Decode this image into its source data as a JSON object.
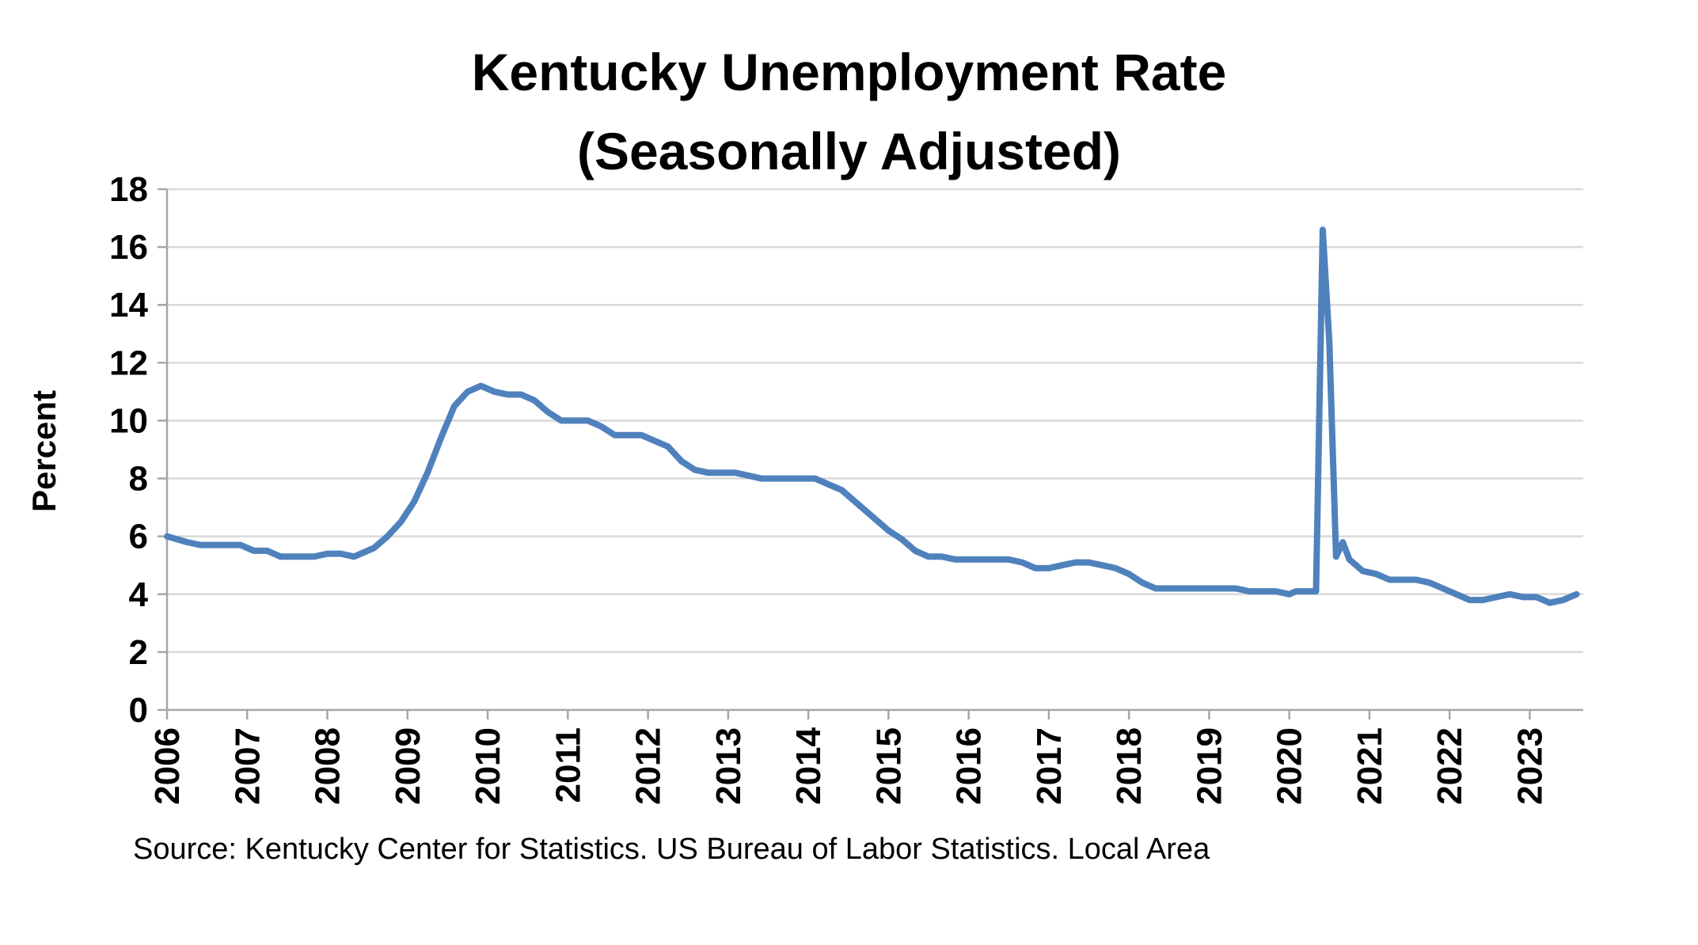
{
  "chart_data": {
    "type": "line",
    "title_lines": [
      "Kentucky Unemployment Rate",
      "(Seasonally Adjusted)"
    ],
    "xlabel": "",
    "ylabel": "Percent",
    "ylim": [
      0,
      18
    ],
    "yticks": [
      "0",
      "2",
      "4",
      "6",
      "8",
      "10",
      "12",
      "14",
      "16",
      "18"
    ],
    "xlim": [
      "2006-01",
      "2023-09"
    ],
    "xticks": [
      "2006",
      "2007",
      "2008",
      "2009",
      "2010",
      "2011",
      "2012",
      "2013",
      "2014",
      "2015",
      "2016",
      "2017",
      "2018",
      "2019",
      "2020",
      "2021",
      "2022",
      "2023"
    ],
    "grid": true,
    "legend": "none",
    "line_color": "#4F81BD",
    "gridline_color": "#D9D9D9",
    "axis_color": "#A6A6A6",
    "source": "Source: Kentucky Center for Statistics. US Bureau of Labor Statistics. Local Area",
    "series": [
      {
        "points": [
          [
            "2006-01",
            6.0
          ],
          [
            "2006-04",
            5.8
          ],
          [
            "2006-06",
            5.7
          ],
          [
            "2006-09",
            5.7
          ],
          [
            "2006-12",
            5.7
          ],
          [
            "2007-02",
            5.5
          ],
          [
            "2007-04",
            5.5
          ],
          [
            "2007-06",
            5.3
          ],
          [
            "2007-09",
            5.3
          ],
          [
            "2007-11",
            5.3
          ],
          [
            "2008-01",
            5.4
          ],
          [
            "2008-03",
            5.4
          ],
          [
            "2008-05",
            5.3
          ],
          [
            "2008-07",
            5.5
          ],
          [
            "2008-08",
            5.6
          ],
          [
            "2008-10",
            6.0
          ],
          [
            "2008-12",
            6.5
          ],
          [
            "2009-02",
            7.2
          ],
          [
            "2009-04",
            8.2
          ],
          [
            "2009-06",
            9.4
          ],
          [
            "2009-08",
            10.5
          ],
          [
            "2009-10",
            11.0
          ],
          [
            "2009-12",
            11.2
          ],
          [
            "2010-02",
            11.0
          ],
          [
            "2010-04",
            10.9
          ],
          [
            "2010-06",
            10.9
          ],
          [
            "2010-08",
            10.7
          ],
          [
            "2010-10",
            10.3
          ],
          [
            "2010-12",
            10.0
          ],
          [
            "2011-02",
            10.0
          ],
          [
            "2011-04",
            10.0
          ],
          [
            "2011-06",
            9.8
          ],
          [
            "2011-08",
            9.5
          ],
          [
            "2011-10",
            9.5
          ],
          [
            "2011-12",
            9.5
          ],
          [
            "2012-02",
            9.3
          ],
          [
            "2012-04",
            9.1
          ],
          [
            "2012-06",
            8.6
          ],
          [
            "2012-08",
            8.3
          ],
          [
            "2012-10",
            8.2
          ],
          [
            "2012-12",
            8.2
          ],
          [
            "2013-02",
            8.2
          ],
          [
            "2013-04",
            8.1
          ],
          [
            "2013-06",
            8.0
          ],
          [
            "2013-08",
            8.0
          ],
          [
            "2013-10",
            8.0
          ],
          [
            "2013-12",
            8.0
          ],
          [
            "2014-02",
            8.0
          ],
          [
            "2014-04",
            7.8
          ],
          [
            "2014-06",
            7.6
          ],
          [
            "2014-07",
            7.4
          ],
          [
            "2014-09",
            7.0
          ],
          [
            "2014-11",
            6.6
          ],
          [
            "2015-01",
            6.2
          ],
          [
            "2015-03",
            5.9
          ],
          [
            "2015-05",
            5.5
          ],
          [
            "2015-07",
            5.3
          ],
          [
            "2015-09",
            5.3
          ],
          [
            "2015-11",
            5.2
          ],
          [
            "2016-01",
            5.2
          ],
          [
            "2016-03",
            5.2
          ],
          [
            "2016-05",
            5.2
          ],
          [
            "2016-07",
            5.2
          ],
          [
            "2016-09",
            5.1
          ],
          [
            "2016-11",
            4.9
          ],
          [
            "2017-01",
            4.9
          ],
          [
            "2017-03",
            5.0
          ],
          [
            "2017-05",
            5.1
          ],
          [
            "2017-07",
            5.1
          ],
          [
            "2017-09",
            5.0
          ],
          [
            "2017-11",
            4.9
          ],
          [
            "2018-01",
            4.7
          ],
          [
            "2018-03",
            4.4
          ],
          [
            "2018-05",
            4.2
          ],
          [
            "2018-07",
            4.2
          ],
          [
            "2018-09",
            4.2
          ],
          [
            "2018-11",
            4.2
          ],
          [
            "2019-01",
            4.2
          ],
          [
            "2019-03",
            4.2
          ],
          [
            "2019-05",
            4.2
          ],
          [
            "2019-07",
            4.1
          ],
          [
            "2019-09",
            4.1
          ],
          [
            "2019-11",
            4.1
          ],
          [
            "2020-01",
            4.0
          ],
          [
            "2020-02",
            4.1
          ],
          [
            "2020-03",
            4.1
          ],
          [
            "2020-05",
            4.1
          ],
          [
            "2020-06",
            16.6
          ],
          [
            "2020-07",
            12.7
          ],
          [
            "2020-08",
            5.3
          ],
          [
            "2020-09",
            5.8
          ],
          [
            "2020-10",
            5.2
          ],
          [
            "2020-12",
            4.8
          ],
          [
            "2021-02",
            4.7
          ],
          [
            "2021-04",
            4.5
          ],
          [
            "2021-06",
            4.5
          ],
          [
            "2021-08",
            4.5
          ],
          [
            "2021-10",
            4.4
          ],
          [
            "2021-12",
            4.2
          ],
          [
            "2022-02",
            4.0
          ],
          [
            "2022-04",
            3.8
          ],
          [
            "2022-06",
            3.8
          ],
          [
            "2022-08",
            3.9
          ],
          [
            "2022-10",
            4.0
          ],
          [
            "2022-12",
            3.9
          ],
          [
            "2023-02",
            3.9
          ],
          [
            "2023-04",
            3.7
          ],
          [
            "2023-06",
            3.8
          ],
          [
            "2023-08",
            4.0
          ]
        ]
      }
    ]
  }
}
